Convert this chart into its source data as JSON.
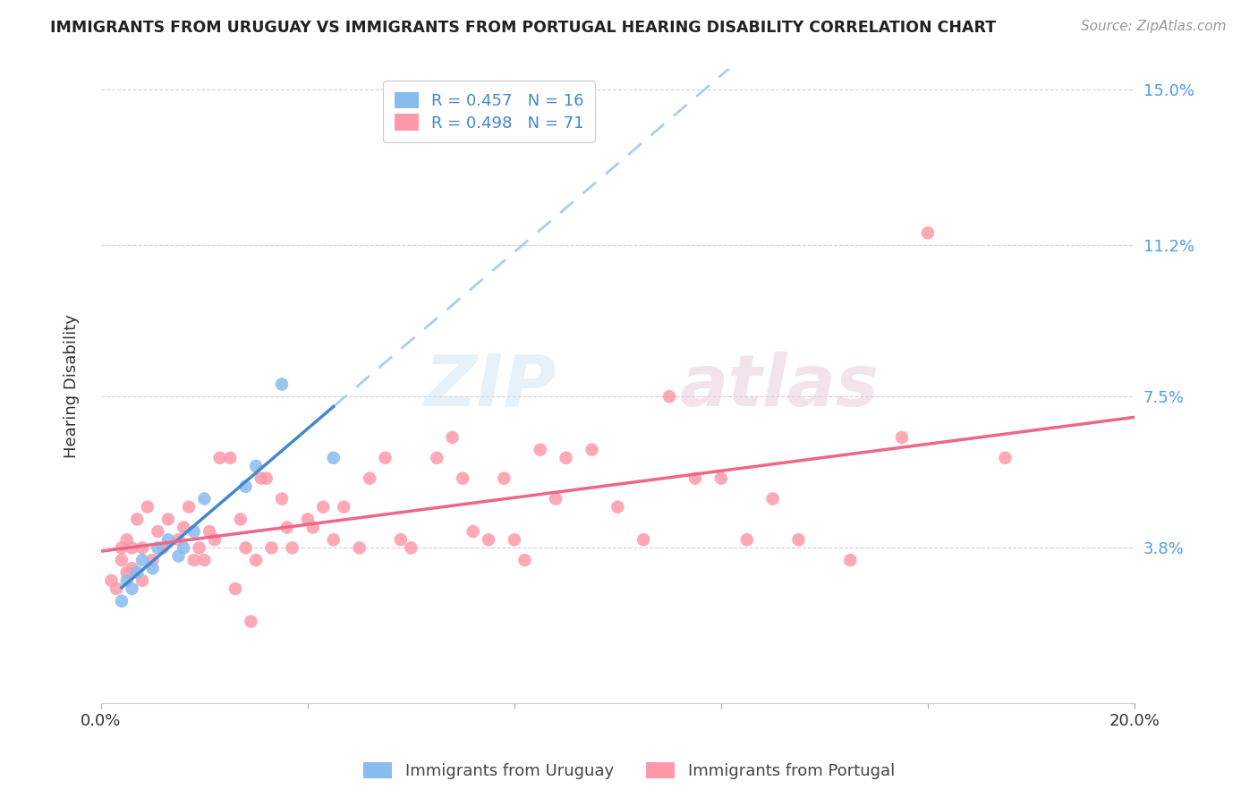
{
  "title": "IMMIGRANTS FROM URUGUAY VS IMMIGRANTS FROM PORTUGAL HEARING DISABILITY CORRELATION CHART",
  "source": "Source: ZipAtlas.com",
  "ylabel": "Hearing Disability",
  "xlim": [
    0.0,
    0.2
  ],
  "ylim": [
    0.0,
    0.155
  ],
  "r_uruguay": 0.457,
  "n_uruguay": 16,
  "r_portugal": 0.498,
  "n_portugal": 71,
  "color_uruguay": "#88bbee",
  "color_portugal": "#ff99aa",
  "trendline_uruguay_color": "#4488cc",
  "trendline_portugal_color": "#ee6688",
  "dashed_line_color": "#aaccee",
  "watermark_zip": "ZIP",
  "watermark_atlas": "atlas",
  "uruguay_x": [
    0.004,
    0.005,
    0.006,
    0.007,
    0.008,
    0.01,
    0.011,
    0.013,
    0.015,
    0.016,
    0.018,
    0.02,
    0.028,
    0.03,
    0.035,
    0.045
  ],
  "uruguay_y": [
    0.025,
    0.03,
    0.028,
    0.032,
    0.035,
    0.033,
    0.038,
    0.04,
    0.036,
    0.038,
    0.042,
    0.05,
    0.053,
    0.058,
    0.078,
    0.06
  ],
  "portugal_x": [
    0.002,
    0.003,
    0.004,
    0.004,
    0.005,
    0.005,
    0.006,
    0.006,
    0.007,
    0.008,
    0.008,
    0.009,
    0.01,
    0.011,
    0.012,
    0.013,
    0.015,
    0.016,
    0.017,
    0.018,
    0.019,
    0.02,
    0.021,
    0.022,
    0.023,
    0.025,
    0.026,
    0.027,
    0.028,
    0.029,
    0.03,
    0.031,
    0.032,
    0.033,
    0.035,
    0.036,
    0.037,
    0.04,
    0.041,
    0.043,
    0.045,
    0.047,
    0.05,
    0.052,
    0.055,
    0.058,
    0.06,
    0.065,
    0.068,
    0.07,
    0.072,
    0.075,
    0.078,
    0.08,
    0.082,
    0.085,
    0.088,
    0.09,
    0.095,
    0.1,
    0.105,
    0.11,
    0.115,
    0.12,
    0.125,
    0.13,
    0.135,
    0.145,
    0.155,
    0.16,
    0.175
  ],
  "portugal_y": [
    0.03,
    0.028,
    0.035,
    0.038,
    0.032,
    0.04,
    0.033,
    0.038,
    0.045,
    0.03,
    0.038,
    0.048,
    0.035,
    0.042,
    0.038,
    0.045,
    0.04,
    0.043,
    0.048,
    0.035,
    0.038,
    0.035,
    0.042,
    0.04,
    0.06,
    0.06,
    0.028,
    0.045,
    0.038,
    0.02,
    0.035,
    0.055,
    0.055,
    0.038,
    0.05,
    0.043,
    0.038,
    0.045,
    0.043,
    0.048,
    0.04,
    0.048,
    0.038,
    0.055,
    0.06,
    0.04,
    0.038,
    0.06,
    0.065,
    0.055,
    0.042,
    0.04,
    0.055,
    0.04,
    0.035,
    0.062,
    0.05,
    0.06,
    0.062,
    0.048,
    0.04,
    0.075,
    0.055,
    0.055,
    0.04,
    0.05,
    0.04,
    0.035,
    0.065,
    0.115,
    0.06
  ]
}
